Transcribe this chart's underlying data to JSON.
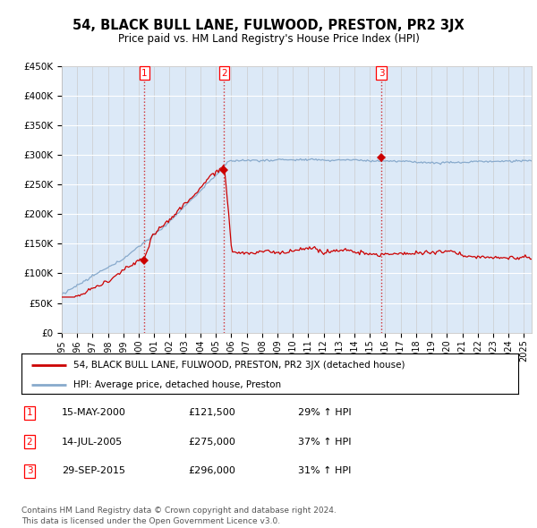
{
  "title": "54, BLACK BULL LANE, FULWOOD, PRESTON, PR2 3JX",
  "subtitle": "Price paid vs. HM Land Registry's House Price Index (HPI)",
  "ylim": [
    0,
    450000
  ],
  "xlim_start": 1995.0,
  "xlim_end": 2025.5,
  "background_color": "#dce9f7",
  "sale_dates": [
    2000.37,
    2005.54,
    2015.75
  ],
  "sale_prices": [
    121500,
    275000,
    296000
  ],
  "sale_labels": [
    "1",
    "2",
    "3"
  ],
  "sale_info": [
    {
      "num": "1",
      "date": "15-MAY-2000",
      "price": "£121,500",
      "hpi": "29% ↑ HPI"
    },
    {
      "num": "2",
      "date": "14-JUL-2005",
      "price": "£275,000",
      "hpi": "37% ↑ HPI"
    },
    {
      "num": "3",
      "date": "29-SEP-2015",
      "price": "£296,000",
      "hpi": "31% ↑ HPI"
    }
  ],
  "legend_entries": [
    "54, BLACK BULL LANE, FULWOOD, PRESTON, PR2 3JX (detached house)",
    "HPI: Average price, detached house, Preston"
  ],
  "footer": "Contains HM Land Registry data © Crown copyright and database right 2024.\nThis data is licensed under the Open Government Licence v3.0.",
  "red_color": "#cc0000",
  "blue_color": "#88aacc",
  "yticks": [
    0,
    50000,
    100000,
    150000,
    200000,
    250000,
    300000,
    350000,
    400000,
    450000
  ],
  "ytick_labels": [
    "£0",
    "£50K",
    "£100K",
    "£150K",
    "£200K",
    "£250K",
    "£300K",
    "£350K",
    "£400K",
    "£450K"
  ]
}
